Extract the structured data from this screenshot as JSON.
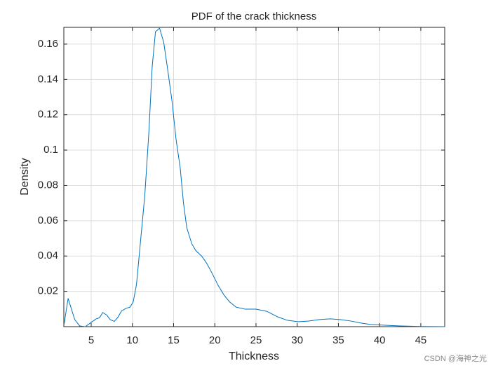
{
  "chart_data": {
    "type": "line",
    "title": "PDF of the crack thickness",
    "x_label": "Thickness",
    "y_label": "Density",
    "x": [
      1.7,
      2.2,
      3.0,
      3.6,
      4.3,
      5.0,
      5.6,
      6.0,
      6.4,
      6.9,
      7.3,
      7.8,
      8.2,
      8.7,
      9.3,
      9.7,
      10.1,
      10.5,
      10.9,
      11.5,
      12.0,
      12.4,
      12.8,
      13.3,
      13.8,
      14.3,
      14.8,
      15.3,
      15.8,
      16.2,
      16.6,
      17.2,
      17.7,
      18.4,
      19.0,
      19.7,
      20.4,
      21.1,
      21.8,
      22.6,
      23.7,
      25.0,
      26.3,
      27.6,
      28.8,
      30.1,
      31.4,
      32.7,
      34.0,
      35.2,
      36.5,
      37.8,
      39.0,
      40.7,
      42.5,
      45.0,
      47.9
    ],
    "series": [
      {
        "name": "Density",
        "color": "#0072bd",
        "values": [
          0.001,
          0.016,
          0.004,
          0.0004,
          0.0,
          0.0024,
          0.0044,
          0.005,
          0.008,
          0.0065,
          0.004,
          0.003,
          0.005,
          0.009,
          0.0105,
          0.011,
          0.014,
          0.024,
          0.044,
          0.074,
          0.11,
          0.147,
          0.167,
          0.169,
          0.161,
          0.145,
          0.128,
          0.106,
          0.09,
          0.07,
          0.056,
          0.047,
          0.043,
          0.04,
          0.036,
          0.03,
          0.0234,
          0.018,
          0.014,
          0.011,
          0.0099,
          0.0099,
          0.0087,
          0.0056,
          0.0036,
          0.0028,
          0.0032,
          0.004,
          0.0044,
          0.004,
          0.0032,
          0.002,
          0.0012,
          0.0008,
          0.0004,
          0.0001,
          0.0
        ]
      }
    ],
    "xlim": [
      1.68,
      47.9
    ],
    "ylim": [
      0,
      0.1695
    ],
    "xticks": [
      5,
      10,
      15,
      20,
      25,
      30,
      35,
      40,
      45
    ],
    "yticks": [
      0.02,
      0.04,
      0.06,
      0.08,
      0.1,
      0.12,
      0.14,
      0.16
    ],
    "grid": true,
    "watermark": "CSDN @海神之光"
  }
}
